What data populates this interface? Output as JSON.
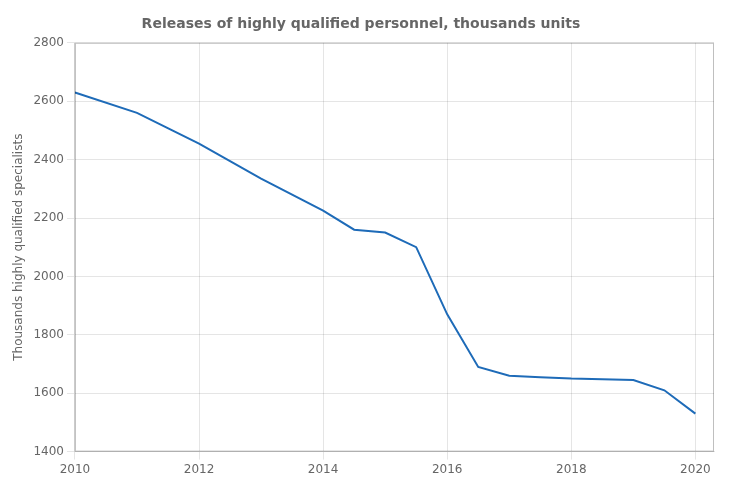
{
  "chart_data": {
    "type": "line",
    "title": "Releases of highly qualified personnel, thousands units",
    "ylabel": "Thousands highly qualified specialists",
    "x": [
      2010,
      2011,
      2012,
      2013,
      2014,
      2014.5,
      2015,
      2015.5,
      2016,
      2016.5,
      2017,
      2017.5,
      2018,
      2018.5,
      2019,
      2019.5,
      2020
    ],
    "values": [
      2630,
      2560,
      2455,
      2335,
      2225,
      2160,
      2150,
      2100,
      1870,
      1690,
      1660,
      1655,
      1650,
      1648,
      1645,
      1610,
      1530
    ],
    "color": "#1e6bb8",
    "xlim": [
      2010,
      2020.3
    ],
    "ylim": [
      1400,
      2800
    ],
    "xticks": [
      2010,
      2012,
      2014,
      2016,
      2018,
      2020
    ],
    "yticks": [
      1400,
      1600,
      1800,
      2000,
      2200,
      2400,
      2600,
      2800
    ],
    "grid": true
  }
}
